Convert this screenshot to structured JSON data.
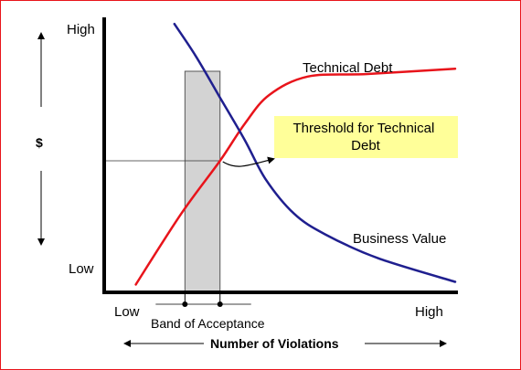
{
  "chart_data": {
    "type": "line",
    "title": "",
    "xlabel": "Number of Violations",
    "ylabel": "$",
    "x_ticks": {
      "low": "Low",
      "high": "High"
    },
    "y_ticks": {
      "low": "Low",
      "high": "High"
    },
    "xlim": [
      0,
      10
    ],
    "ylim": [
      0,
      10
    ],
    "grid": false,
    "legend": "none",
    "series": [
      {
        "name": "Technical Debt",
        "color": "#e8141b",
        "x": [
          0.9,
          2.2,
          3.3,
          4.0,
          4.7,
          5.8,
          7.5,
          10.0
        ],
        "y": [
          0.3,
          3.0,
          5.0,
          6.4,
          7.5,
          8.2,
          8.3,
          8.5
        ]
      },
      {
        "name": "Business Value",
        "color": "#1f1f8f",
        "x": [
          2.0,
          2.6,
          3.3,
          4.0,
          4.6,
          5.4,
          6.3,
          7.8,
          10.0
        ],
        "y": [
          10.2,
          9.0,
          7.4,
          5.8,
          4.3,
          3.0,
          2.2,
          1.3,
          0.4
        ]
      }
    ],
    "annotations": {
      "threshold": {
        "text": "Threshold for Technical Debt",
        "x": 3.3,
        "y": 5.0,
        "color": "#ffff99"
      },
      "band": {
        "text": "Band of Acceptance",
        "x_range": [
          2.3,
          3.3
        ],
        "color": "#d3d3d3"
      }
    }
  }
}
